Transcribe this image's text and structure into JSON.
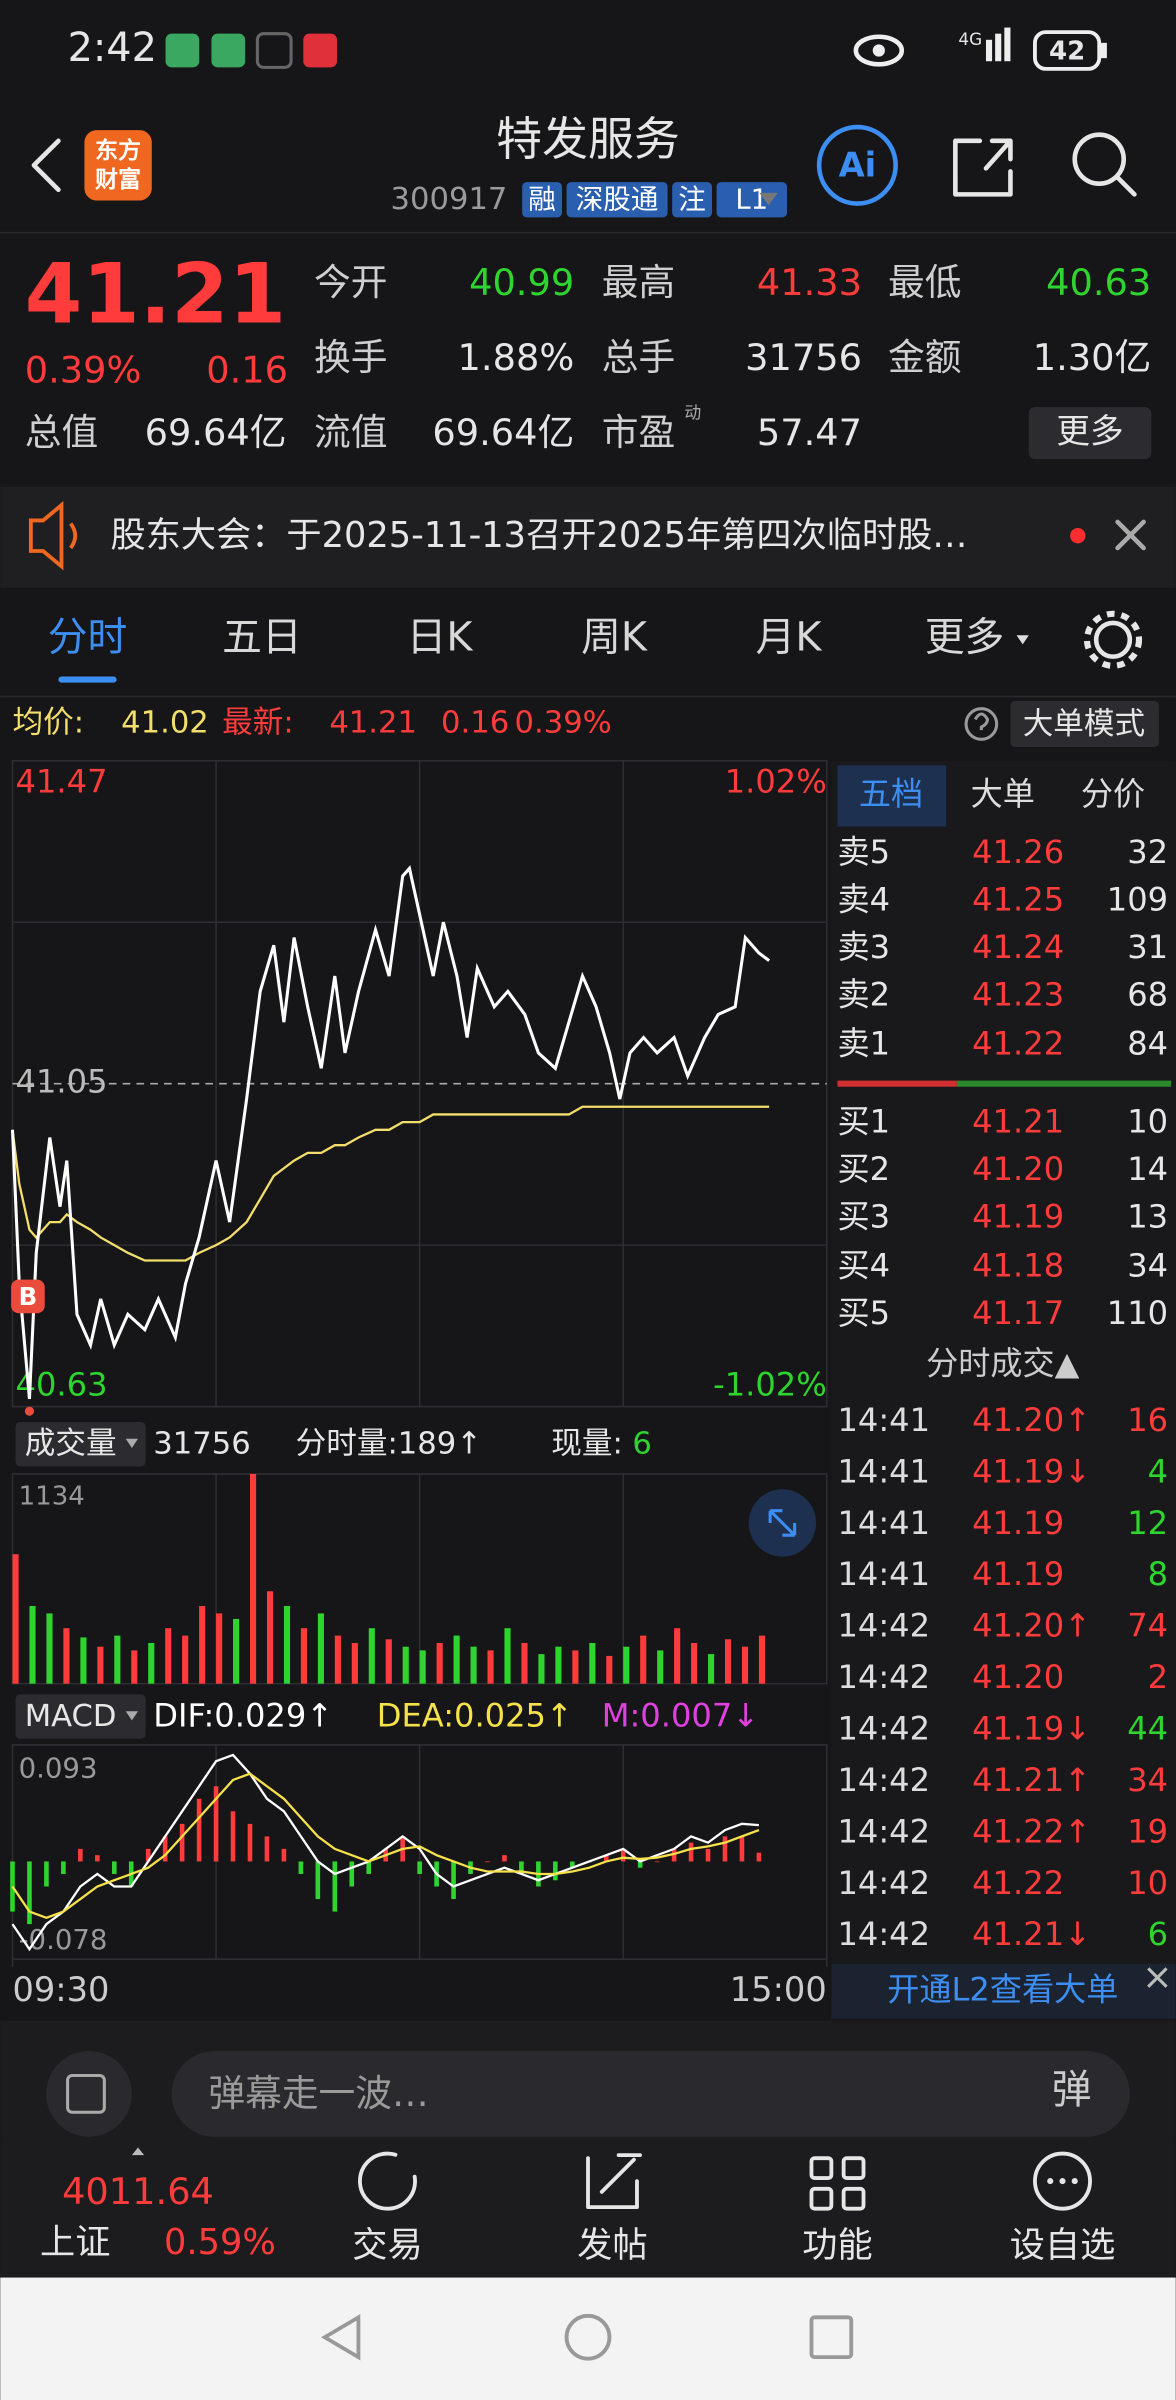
{
  "status_bar": {
    "time": "2:42",
    "network": "4G",
    "battery": "42"
  },
  "header": {
    "logo": [
      "东方",
      "财富"
    ],
    "title": "特发服务",
    "code": "300917",
    "tags": [
      "融",
      "深股通",
      "注",
      "L1"
    ],
    "ai": "Ai"
  },
  "quote": {
    "price": "41.21",
    "change_pct": "0.39%",
    "change": "0.16",
    "fields": [
      {
        "label": "今开",
        "value": "40.99",
        "color": "#2fd52f"
      },
      {
        "label": "最高",
        "value": "41.33",
        "color": "#ff3b3b"
      },
      {
        "label": "最低",
        "value": "40.63",
        "color": "#2fd52f"
      },
      {
        "label": "换手",
        "value": "1.88%"
      },
      {
        "label": "总手",
        "value": "31756"
      },
      {
        "label": "金额",
        "value": "1.30亿"
      },
      {
        "label": "总值",
        "value": "69.64亿"
      },
      {
        "label": "流值",
        "value": "69.64亿"
      },
      {
        "label": "市盈",
        "value": "57.47",
        "sup": "动"
      }
    ],
    "more": "更多"
  },
  "notice": "股东大会：于2025-11-13召开2025年第四次临时股…",
  "tabs": [
    "分时",
    "五日",
    "日K",
    "周K",
    "月K",
    "更多"
  ],
  "info_bar": {
    "avg_label": "均价:",
    "avg": "41.02",
    "latest_label": "最新:",
    "latest": "41.21",
    "change": "0.16",
    "change_pct": "0.39%",
    "mode": "大单模式"
  },
  "chart_data": [
    {
      "type": "line",
      "buy_marker": "B",
      "x": [
        0,
        2,
        5,
        7,
        11,
        14,
        16,
        19,
        23,
        26,
        30,
        34,
        39,
        43,
        48,
        51,
        55,
        60,
        64,
        69,
        73,
        77,
        80,
        83,
        87,
        91,
        95,
        98,
        102,
        107,
        111,
        115,
        117,
        120,
        124,
        127,
        131,
        134,
        137,
        142,
        146,
        151,
        155,
        160,
        164,
        168,
        172,
        176,
        179,
        182,
        186,
        190,
        195,
        199,
        204,
        208,
        213,
        216,
        220,
        223
      ],
      "xlim": [
        0,
        240
      ],
      "xticks": [
        {
          "value": 0,
          "label": "09:30"
        },
        {
          "value": 240,
          "label": "15:00"
        }
      ],
      "ylim": [
        40.63,
        41.47
      ],
      "yticks": [
        40.63,
        41.05,
        41.47
      ],
      "y2lim": [
        -1.02,
        1.02
      ],
      "y2ticks": [
        {
          "value": 1.02,
          "label": "1.02%"
        },
        {
          "value": -1.02,
          "label": "-1.02%"
        }
      ],
      "series": [
        {
          "name": "price",
          "color": "#ffffff",
          "values": [
            40.99,
            40.79,
            40.64,
            40.83,
            40.98,
            40.89,
            40.95,
            40.75,
            40.71,
            40.77,
            40.71,
            40.75,
            40.73,
            40.77,
            40.72,
            40.79,
            40.85,
            40.95,
            40.87,
            41.03,
            41.17,
            41.23,
            41.13,
            41.24,
            41.15,
            41.07,
            41.19,
            41.09,
            41.17,
            41.25,
            41.19,
            41.32,
            41.33,
            41.27,
            41.19,
            41.26,
            41.19,
            41.11,
            41.2,
            41.15,
            41.17,
            41.14,
            41.09,
            41.07,
            41.13,
            41.19,
            41.15,
            41.09,
            41.03,
            41.09,
            41.11,
            41.09,
            41.11,
            41.06,
            41.11,
            41.14,
            41.15,
            41.24,
            41.22,
            41.21
          ]
        },
        {
          "name": "avg",
          "color": "#f3de6b",
          "values": [
            40.99,
            40.92,
            40.86,
            40.85,
            40.87,
            40.87,
            40.88,
            40.87,
            40.86,
            40.85,
            40.84,
            40.83,
            40.82,
            40.82,
            40.82,
            40.82,
            40.83,
            40.84,
            40.85,
            40.87,
            40.9,
            40.93,
            40.94,
            40.95,
            40.96,
            40.96,
            40.97,
            40.97,
            40.98,
            40.99,
            40.99,
            41.0,
            41.0,
            41.0,
            41.01,
            41.01,
            41.01,
            41.01,
            41.01,
            41.01,
            41.01,
            41.01,
            41.01,
            41.01,
            41.01,
            41.02,
            41.02,
            41.02,
            41.02,
            41.02,
            41.02,
            41.02,
            41.02,
            41.02,
            41.02,
            41.02,
            41.02,
            41.02,
            41.02,
            41.02
          ]
        }
      ]
    },
    {
      "type": "bar",
      "x": [
        0,
        5,
        10,
        15,
        20,
        25,
        30,
        35,
        40,
        45,
        50,
        55,
        60,
        65,
        70,
        75,
        80,
        85,
        90,
        95,
        100,
        105,
        110,
        115,
        120,
        125,
        130,
        135,
        140,
        145,
        150,
        155,
        160,
        165,
        170,
        175,
        180,
        185,
        190,
        195,
        200,
        205,
        210,
        215,
        220
      ],
      "xlim": [
        0,
        240
      ],
      "ylim": [
        0,
        1134
      ],
      "yticks": [
        1134
      ],
      "values": [
        700,
        420,
        380,
        300,
        250,
        200,
        260,
        180,
        220,
        300,
        260,
        420,
        380,
        350,
        1134,
        500,
        420,
        300,
        380,
        260,
        220,
        300,
        240,
        200,
        180,
        220,
        260,
        200,
        180,
        300,
        220,
        160,
        200,
        180,
        220,
        150,
        200,
        260,
        180,
        300,
        220,
        160,
        240,
        200,
        260
      ],
      "colors": [
        "#ff3b3b",
        "#2fd52f",
        "#2fd52f",
        "#ff3b3b",
        "#2fd52f",
        "#ff3b3b",
        "#2fd52f",
        "#ff3b3b",
        "#2fd52f",
        "#ff3b3b",
        "#ff3b3b",
        "#ff3b3b",
        "#ff3b3b",
        "#2fd52f",
        "#ff3b3b",
        "#ff3b3b",
        "#2fd52f",
        "#ff3b3b",
        "#2fd52f",
        "#ff3b3b",
        "#ff3b3b",
        "#2fd52f",
        "#ff3b3b",
        "#2fd52f",
        "#2fd52f",
        "#ff3b3b",
        "#2fd52f",
        "#2fd52f",
        "#ff3b3b",
        "#2fd52f",
        "#ff3b3b",
        "#2fd52f",
        "#2fd52f",
        "#ff3b3b",
        "#2fd52f",
        "#ff3b3b",
        "#2fd52f",
        "#ff3b3b",
        "#2fd52f",
        "#ff3b3b",
        "#ff3b3b",
        "#2fd52f",
        "#ff3b3b",
        "#ff3b3b",
        "#ff3b3b"
      ]
    },
    {
      "type": "combo",
      "indicator": "MACD",
      "up_color": "#ff3b3b",
      "down_color": "#2fd52f",
      "x": [
        0,
        5,
        10,
        15,
        20,
        25,
        30,
        35,
        40,
        45,
        50,
        55,
        60,
        65,
        70,
        75,
        80,
        85,
        90,
        95,
        100,
        105,
        110,
        115,
        120,
        125,
        130,
        135,
        140,
        145,
        150,
        155,
        160,
        165,
        170,
        175,
        180,
        185,
        190,
        195,
        200,
        205,
        210,
        215,
        220
      ],
      "xlim": [
        0,
        240
      ],
      "ylim": [
        -0.078,
        0.093
      ],
      "yticks": [
        0.093,
        -0.078
      ],
      "series": [
        {
          "name": "DIF:0.029↑",
          "kind": "line",
          "color": "#ffffff",
          "values": [
            -0.05,
            -0.07,
            -0.05,
            -0.04,
            -0.02,
            -0.01,
            -0.02,
            -0.02,
            0.0,
            0.02,
            0.04,
            0.06,
            0.08,
            0.085,
            0.07,
            0.05,
            0.04,
            0.02,
            0.0,
            -0.01,
            -0.005,
            0.0,
            0.01,
            0.02,
            0.01,
            -0.01,
            -0.02,
            -0.015,
            -0.01,
            -0.005,
            -0.01,
            -0.015,
            -0.01,
            -0.005,
            0.0,
            0.005,
            0.01,
            0.0,
            0.005,
            0.01,
            0.02,
            0.015,
            0.025,
            0.03,
            0.029
          ]
        },
        {
          "name": "DEA:0.025↑",
          "kind": "line",
          "color": "#f5e14a",
          "values": [
            -0.02,
            -0.04,
            -0.045,
            -0.04,
            -0.03,
            -0.02,
            -0.015,
            -0.01,
            -0.005,
            0.005,
            0.02,
            0.035,
            0.05,
            0.065,
            0.07,
            0.06,
            0.05,
            0.035,
            0.02,
            0.01,
            0.005,
            0.0,
            0.005,
            0.01,
            0.012,
            0.005,
            0.0,
            -0.005,
            -0.008,
            -0.008,
            -0.008,
            -0.01,
            -0.01,
            -0.008,
            -0.005,
            0.0,
            0.003,
            0.002,
            0.003,
            0.006,
            0.01,
            0.012,
            0.015,
            0.02,
            0.025
          ]
        },
        {
          "name": "M:0.007↓",
          "kind": "bar",
          "color": "#e040e0",
          "values": [
            -0.04,
            -0.05,
            -0.02,
            -0.01,
            0.01,
            0.005,
            -0.01,
            -0.02,
            0.01,
            0.02,
            0.03,
            0.05,
            0.06,
            0.04,
            0.03,
            0.02,
            0.01,
            -0.01,
            -0.03,
            -0.04,
            -0.02,
            -0.01,
            0.01,
            0.02,
            -0.01,
            -0.02,
            -0.03,
            -0.01,
            0.0,
            0.005,
            -0.01,
            -0.02,
            -0.015,
            -0.005,
            0.0,
            0.005,
            0.01,
            -0.005,
            0.0,
            0.01,
            0.015,
            0.01,
            0.02,
            0.02,
            0.007
          ]
        }
      ]
    }
  ],
  "volume_header": {
    "label": "成交量",
    "total": "31756",
    "minute_volume": "分时量:189↑",
    "current_label": "现量:",
    "current": "6"
  },
  "order_book": {
    "tabs": [
      "五档",
      "大单",
      "分价"
    ],
    "asks": [
      {
        "label": "卖5",
        "price": "41.26",
        "volume": "32"
      },
      {
        "label": "卖4",
        "price": "41.25",
        "volume": "109"
      },
      {
        "label": "卖3",
        "price": "41.24",
        "volume": "31"
      },
      {
        "label": "卖2",
        "price": "41.23",
        "volume": "68"
      },
      {
        "label": "卖1",
        "price": "41.22",
        "volume": "84"
      }
    ],
    "bids": [
      {
        "label": "买1",
        "price": "41.21",
        "volume": "10"
      },
      {
        "label": "买2",
        "price": "41.20",
        "volume": "14"
      },
      {
        "label": "买3",
        "price": "41.19",
        "volume": "13"
      },
      {
        "label": "买4",
        "price": "41.18",
        "volume": "34"
      },
      {
        "label": "买5",
        "price": "41.17",
        "volume": "110"
      }
    ]
  },
  "trades": {
    "title": "分时成交▲",
    "footer": "开通L2查看大单",
    "rows": [
      {
        "time": "14:41",
        "price": "41.20↑",
        "volume": "16",
        "color": "#ff3b3b"
      },
      {
        "time": "14:41",
        "price": "41.19↓",
        "volume": "4",
        "color": "#2fd52f"
      },
      {
        "time": "14:41",
        "price": "41.19",
        "volume": "12",
        "color": "#2fd52f"
      },
      {
        "time": "14:41",
        "price": "41.19",
        "volume": "8",
        "color": "#2fd52f"
      },
      {
        "time": "14:42",
        "price": "41.20↑",
        "volume": "74",
        "color": "#ff3b3b"
      },
      {
        "time": "14:42",
        "price": "41.20",
        "volume": "2",
        "color": "#ff3b3b"
      },
      {
        "time": "14:42",
        "price": "41.19↓",
        "volume": "44",
        "color": "#2fd52f"
      },
      {
        "time": "14:42",
        "price": "41.21↑",
        "volume": "34",
        "color": "#ff3b3b"
      },
      {
        "time": "14:42",
        "price": "41.22↑",
        "volume": "19",
        "color": "#ff3b3b"
      },
      {
        "time": "14:42",
        "price": "41.22",
        "volume": "10",
        "color": "#ff3b3b"
      },
      {
        "time": "14:42",
        "price": "41.21↓",
        "volume": "6",
        "color": "#2fd52f"
      }
    ]
  },
  "comment_bar": {
    "placeholder": "弹幕走一波…",
    "button": "弹"
  },
  "nav": {
    "index_value": "4011.64",
    "index_name": "上证",
    "index_change": "0.59%",
    "items": [
      "交易",
      "发帖",
      "功能",
      "设自选"
    ]
  }
}
